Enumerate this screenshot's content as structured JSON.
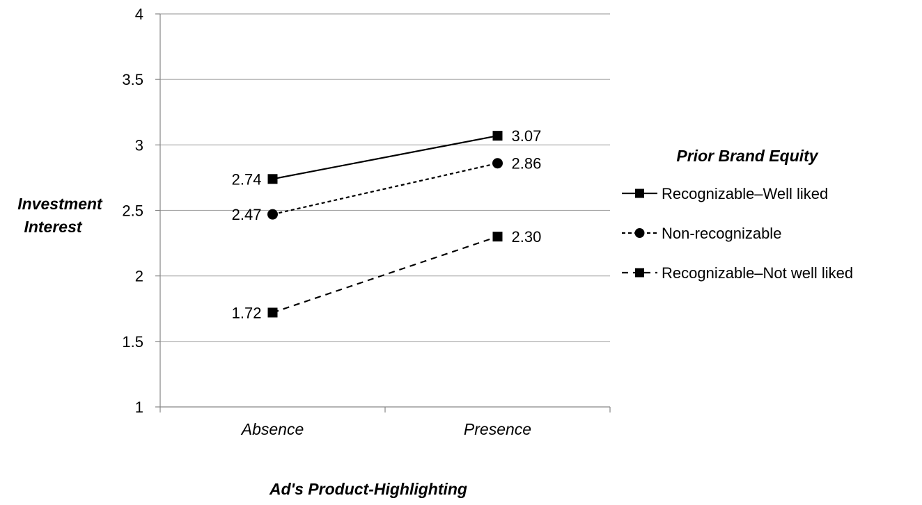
{
  "chart_data": {
    "type": "line",
    "categories": [
      "Absence",
      "Presence"
    ],
    "series": [
      {
        "name": "Recognizable–Well liked",
        "values": [
          2.74,
          3.07
        ],
        "value_labels": [
          "2.74",
          "3.07"
        ],
        "line_style": "solid",
        "marker": "square"
      },
      {
        "name": "Non-recognizable",
        "values": [
          2.47,
          2.86
        ],
        "value_labels": [
          "2.47",
          "2.86"
        ],
        "line_style": "dotted",
        "marker": "circle"
      },
      {
        "name": "Recognizable–Not well liked",
        "values": [
          1.72,
          2.3
        ],
        "value_labels": [
          "1.72",
          "2.30"
        ],
        "line_style": "dashed",
        "marker": "square"
      }
    ],
    "ylim": [
      1,
      4
    ],
    "yticks": [
      "1",
      "1.5",
      "2",
      "2.5",
      "3",
      "3.5",
      "4"
    ],
    "ylabel": [
      "Investment",
      "Interest"
    ],
    "xlabel": "Ad's Product-Highlighting",
    "legend_title": "Prior Brand Equity",
    "legend_position": "right",
    "grid": "horizontal",
    "colors": {
      "line": "#000000",
      "grid": "#a6a6a6",
      "axis": "#868686"
    }
  }
}
